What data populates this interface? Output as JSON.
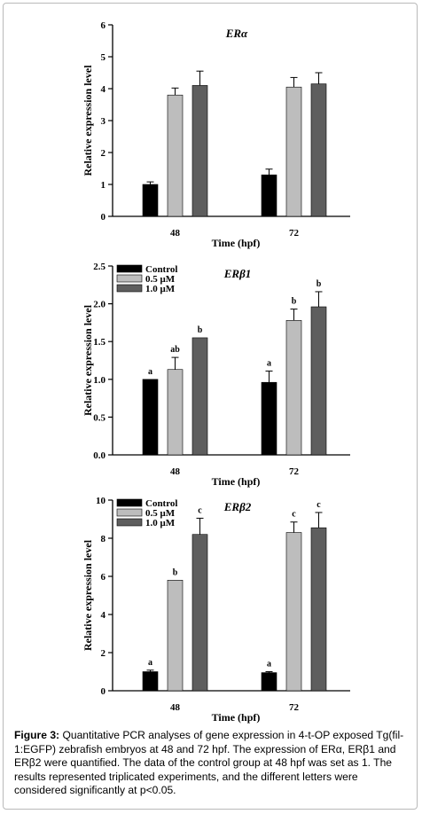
{
  "caption": {
    "label": "Figure 3:",
    "text": "Quantitative PCR analyses of gene expression in 4-t-OP exposed Tg(fil-1:EGFP) zebrafish embryos at 48 and 72 hpf. The expression of ERα, ERβ1 and ERβ2 were quantified. The data of the control group at 48 hpf was set as 1. The results represented triplicated experiments, and the different letters were considered significantly at p<0.05."
  },
  "colors": {
    "control": "#000000",
    "dose_05": "#bdbdbd",
    "dose_10": "#5e5e5e"
  },
  "chart_data": [
    {
      "type": "bar",
      "title": "ERα",
      "xlabel": "Time (hpf)",
      "ylabel": "Relative expression level",
      "categories": [
        "48",
        "72"
      ],
      "ylim": [
        0,
        6
      ],
      "yticks": [
        "0",
        "1",
        "2",
        "3",
        "4",
        "5",
        "6"
      ],
      "legend": null,
      "series": [
        {
          "values": [
            1.0,
            1.3
          ],
          "errors": [
            0.08,
            0.18
          ],
          "letters": [
            "",
            ""
          ]
        },
        {
          "values": [
            3.8,
            4.05
          ],
          "errors": [
            0.22,
            0.3
          ],
          "letters": [
            "",
            ""
          ]
        },
        {
          "values": [
            4.1,
            4.15
          ],
          "errors": [
            0.45,
            0.35
          ],
          "letters": [
            "",
            ""
          ]
        }
      ]
    },
    {
      "type": "bar",
      "title": "ERβ1",
      "xlabel": "Time (hpf)",
      "ylabel": "Relative expression level",
      "categories": [
        "48",
        "72"
      ],
      "ylim": [
        0,
        2.5
      ],
      "yticks": [
        "0.0",
        "0.5",
        "1.0",
        "1.5",
        "2.0",
        "2.5"
      ],
      "legend": {
        "placement": "top-left",
        "entries": [
          "Control",
          "0.5 μM",
          "1.0 μM"
        ]
      },
      "series": [
        {
          "values": [
            1.0,
            0.96
          ],
          "errors": [
            0.0,
            0.15
          ],
          "letters": [
            "a",
            "a"
          ]
        },
        {
          "values": [
            1.13,
            1.78
          ],
          "errors": [
            0.16,
            0.15
          ],
          "letters": [
            "ab",
            "b"
          ]
        },
        {
          "values": [
            1.55,
            1.96
          ],
          "errors": [
            0.0,
            0.2
          ],
          "letters": [
            "b",
            "b"
          ]
        }
      ]
    },
    {
      "type": "bar",
      "title": "ERβ2",
      "xlabel": "Time (hpf)",
      "ylabel": "Relative expression level",
      "categories": [
        "48",
        "72"
      ],
      "ylim": [
        0,
        10
      ],
      "yticks": [
        "0",
        "2",
        "4",
        "6",
        "8",
        "10"
      ],
      "legend": {
        "placement": "top-left",
        "entries": [
          "Control",
          "0.5 μM",
          "1.0 μM"
        ]
      },
      "series": [
        {
          "values": [
            1.0,
            0.95
          ],
          "errors": [
            0.08,
            0.05
          ],
          "letters": [
            "a",
            "a"
          ]
        },
        {
          "values": [
            5.8,
            8.3
          ],
          "errors": [
            0.0,
            0.55
          ],
          "letters": [
            "b",
            "c"
          ]
        },
        {
          "values": [
            8.2,
            8.55
          ],
          "errors": [
            0.85,
            0.8
          ],
          "letters": [
            "c",
            "c"
          ]
        }
      ]
    }
  ]
}
